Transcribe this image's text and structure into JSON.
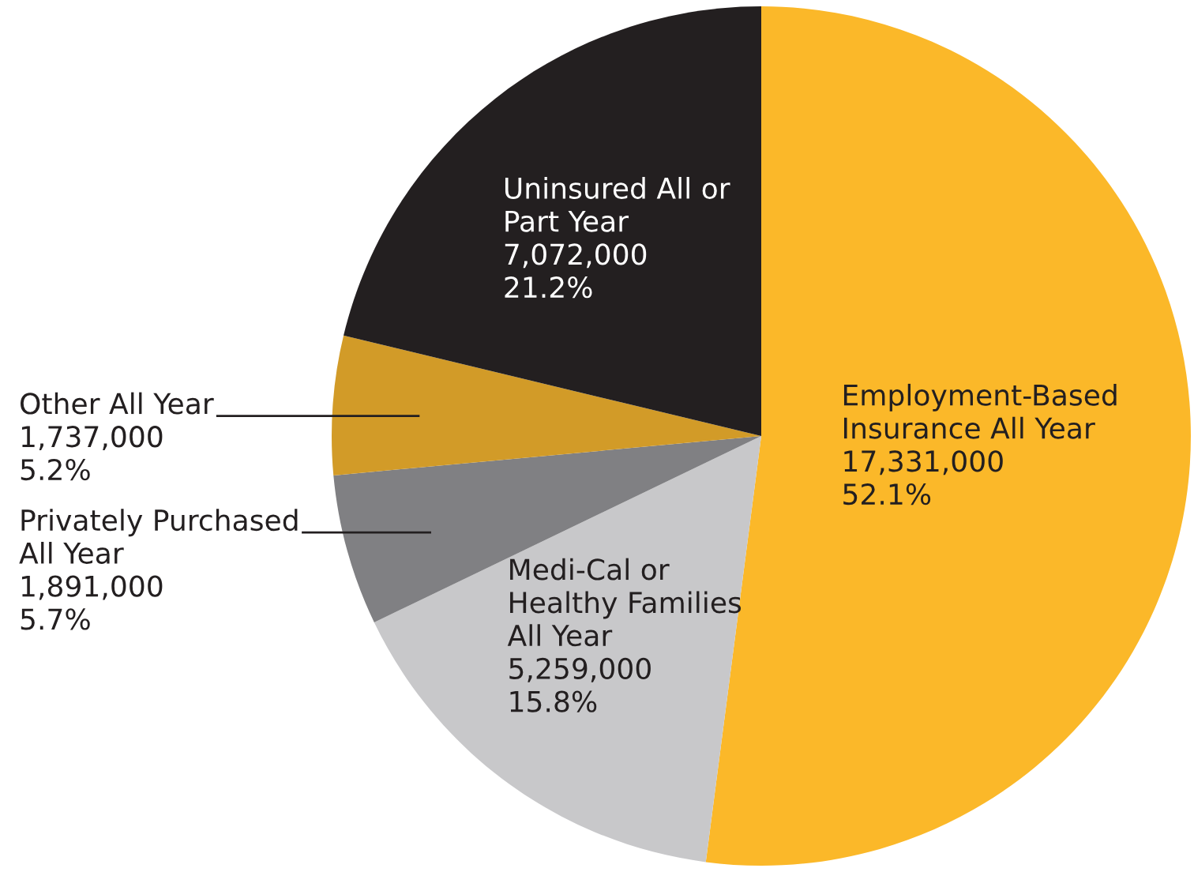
{
  "chart_data": {
    "type": "pie",
    "categories": [
      "Employment-Based\nInsurance All Year",
      "Medi-Cal or\nHealthy Families\nAll Year",
      "Privately Purchased\nAll Year",
      "Other All Year",
      "Uninsured All or\nPart Year"
    ],
    "values": [
      17331000,
      5259000,
      1891000,
      1737000,
      7072000
    ],
    "value_labels": [
      "17,331,000\n52.1%",
      "5,259,000\n15.8%",
      "1,891,000\n5.7%",
      "1,737,000\n5.2%",
      "7,072,000\n21.2%"
    ],
    "colors": [
      "#fbb829",
      "#c8c8ca",
      "#808083",
      "#d29b28",
      "#231f20"
    ],
    "legend": false
  }
}
